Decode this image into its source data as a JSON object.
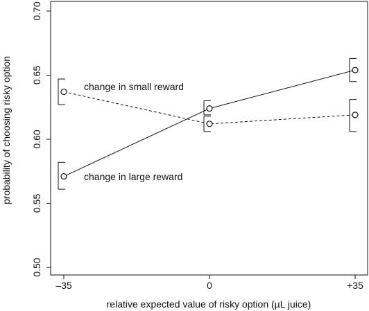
{
  "chart_data": {
    "type": "line",
    "xlabel": "relative expected value of risky option (µL juice)",
    "ylabel": "probability of choosing risky option",
    "x_ticks": [
      {
        "value": -35,
        "label": "–35"
      },
      {
        "value": 0,
        "label": "0"
      },
      {
        "value": 35,
        "label": "+35"
      }
    ],
    "y_ticks": [
      {
        "value": 0.5,
        "label": "0.50"
      },
      {
        "value": 0.55,
        "label": "0.55"
      },
      {
        "value": 0.6,
        "label": "0.60"
      },
      {
        "value": 0.65,
        "label": "0.65"
      },
      {
        "value": 0.7,
        "label": "0.70"
      }
    ],
    "xlim": [
      -35,
      35
    ],
    "ylim": [
      0.495,
      0.705
    ],
    "grid": false,
    "legend": "none",
    "series": [
      {
        "key": "large",
        "style": "solid",
        "x": [
          -35,
          0,
          35
        ],
        "y": [
          0.571,
          0.624,
          0.654
        ],
        "err_low": [
          0.561,
          0.619,
          0.645
        ],
        "err_high": [
          0.582,
          0.63,
          0.663
        ]
      },
      {
        "key": "small",
        "style": "dashed",
        "x": [
          -35,
          0,
          35
        ],
        "y": [
          0.637,
          0.612,
          0.619
        ],
        "err_low": [
          0.627,
          0.606,
          0.606
        ],
        "err_high": [
          0.647,
          0.618,
          0.631
        ]
      }
    ],
    "annotations": [
      {
        "text": "change in small reward",
        "series": "small"
      },
      {
        "text": "change in large reward",
        "series": "large"
      }
    ]
  }
}
